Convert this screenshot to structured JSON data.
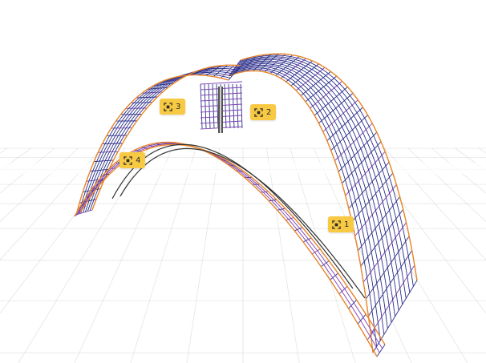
{
  "viewport": {
    "colors": {
      "background": "#ffffff",
      "grid": "#cfcfcf",
      "mesh_orange": "#e8862a",
      "mesh_blue": "#2b2f8a",
      "mesh_purple": "#7b3fb0",
      "arch_line": "#333333",
      "marker": "#f8ca43"
    }
  },
  "markers": [
    {
      "id": "1",
      "label": "1",
      "icon": "focus-frame-icon"
    },
    {
      "id": "2",
      "label": "2",
      "icon": "focus-frame-icon"
    },
    {
      "id": "3",
      "label": "3",
      "icon": "focus-frame-icon"
    },
    {
      "id": "4",
      "label": "4",
      "icon": "focus-frame-icon"
    }
  ]
}
